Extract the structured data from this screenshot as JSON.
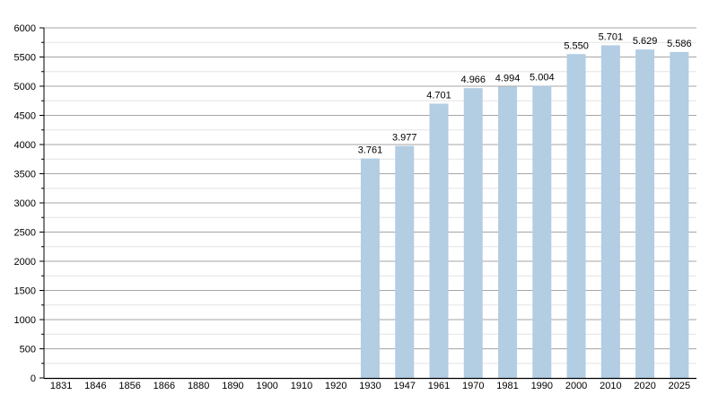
{
  "chart_data": {
    "type": "bar",
    "title": "",
    "xlabel": "",
    "ylabel": "",
    "categories": [
      "1831",
      "1846",
      "1856",
      "1866",
      "1880",
      "1890",
      "1900",
      "1910",
      "1920",
      "1930",
      "1947",
      "1961",
      "1970",
      "1981",
      "1990",
      "2000",
      "2010",
      "2020",
      "2025"
    ],
    "values": [
      null,
      null,
      null,
      null,
      null,
      null,
      null,
      null,
      null,
      3761,
      3977,
      4701,
      4966,
      4994,
      5004,
      5550,
      5701,
      5629,
      5586
    ],
    "data_labels": [
      "",
      "",
      "",
      "",
      "",
      "",
      "",
      "",
      "",
      "3.761",
      "3.977",
      "4.701",
      "4.966",
      "4.994",
      "5.004",
      "5.550",
      "5.701",
      "5.629",
      "5.586"
    ],
    "ylim": [
      0,
      6000
    ],
    "yticks": [
      0,
      500,
      1000,
      1500,
      2000,
      2500,
      3000,
      3500,
      4000,
      4500,
      5000,
      5500,
      6000
    ],
    "grid": true,
    "bar_color": "#b3cde3",
    "legend": "none"
  }
}
